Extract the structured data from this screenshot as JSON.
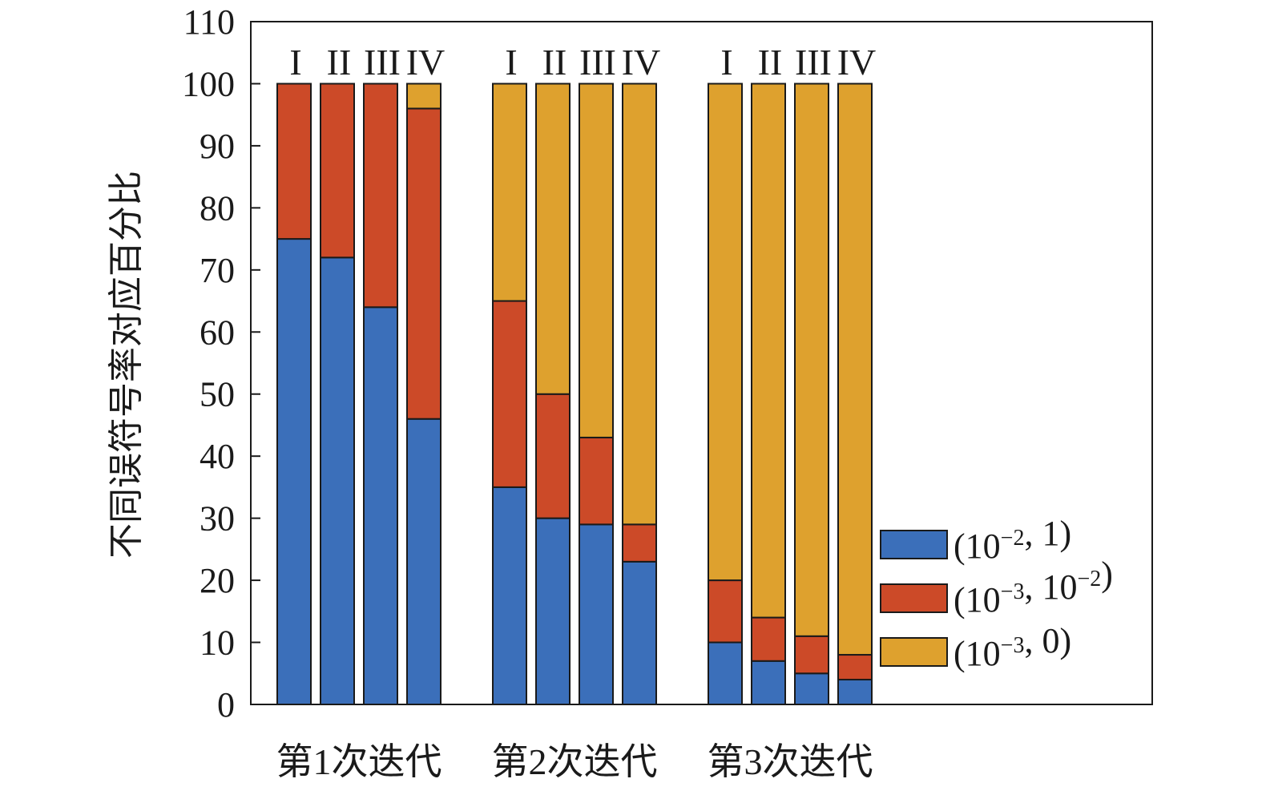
{
  "chart_data": {
    "type": "bar",
    "stacked": true,
    "title": "",
    "xlabel": "",
    "ylabel": "不同误符号率对应百分比",
    "ylim": [
      0,
      110
    ],
    "yticks": [
      0,
      10,
      20,
      30,
      40,
      50,
      60,
      70,
      80,
      90,
      100,
      110
    ],
    "grid": false,
    "legend_position": "bottom-right",
    "groups": [
      "第1次迭代",
      "第2次迭代",
      "第3次迭代"
    ],
    "bar_labels": [
      "I",
      "II",
      "III",
      "IV"
    ],
    "series": [
      {
        "name": "(10⁻², 1)",
        "name_base": "(10",
        "name_exp": "−2",
        "name_tail": ", 1)",
        "color": "#3b6fba",
        "values": [
          [
            75,
            72,
            64,
            46
          ],
          [
            35,
            30,
            29,
            23
          ],
          [
            10,
            7,
            5,
            4
          ]
        ]
      },
      {
        "name": "(10⁻³, 10⁻²)",
        "name_base": "(10",
        "name_exp": "−3",
        "name_mid": ", 10",
        "name_exp2": "−2",
        "name_tail": ")",
        "color": "#cc4a28",
        "values": [
          [
            25,
            28,
            36,
            50
          ],
          [
            30,
            20,
            14,
            6
          ],
          [
            10,
            7,
            6,
            4
          ]
        ]
      },
      {
        "name": "(10⁻³, 0)",
        "name_base": "(10",
        "name_exp": "−3",
        "name_tail": ", 0)",
        "color": "#dea12e",
        "values": [
          [
            0,
            0,
            0,
            4
          ],
          [
            35,
            50,
            57,
            71
          ],
          [
            80,
            86,
            89,
            92
          ]
        ]
      }
    ]
  }
}
